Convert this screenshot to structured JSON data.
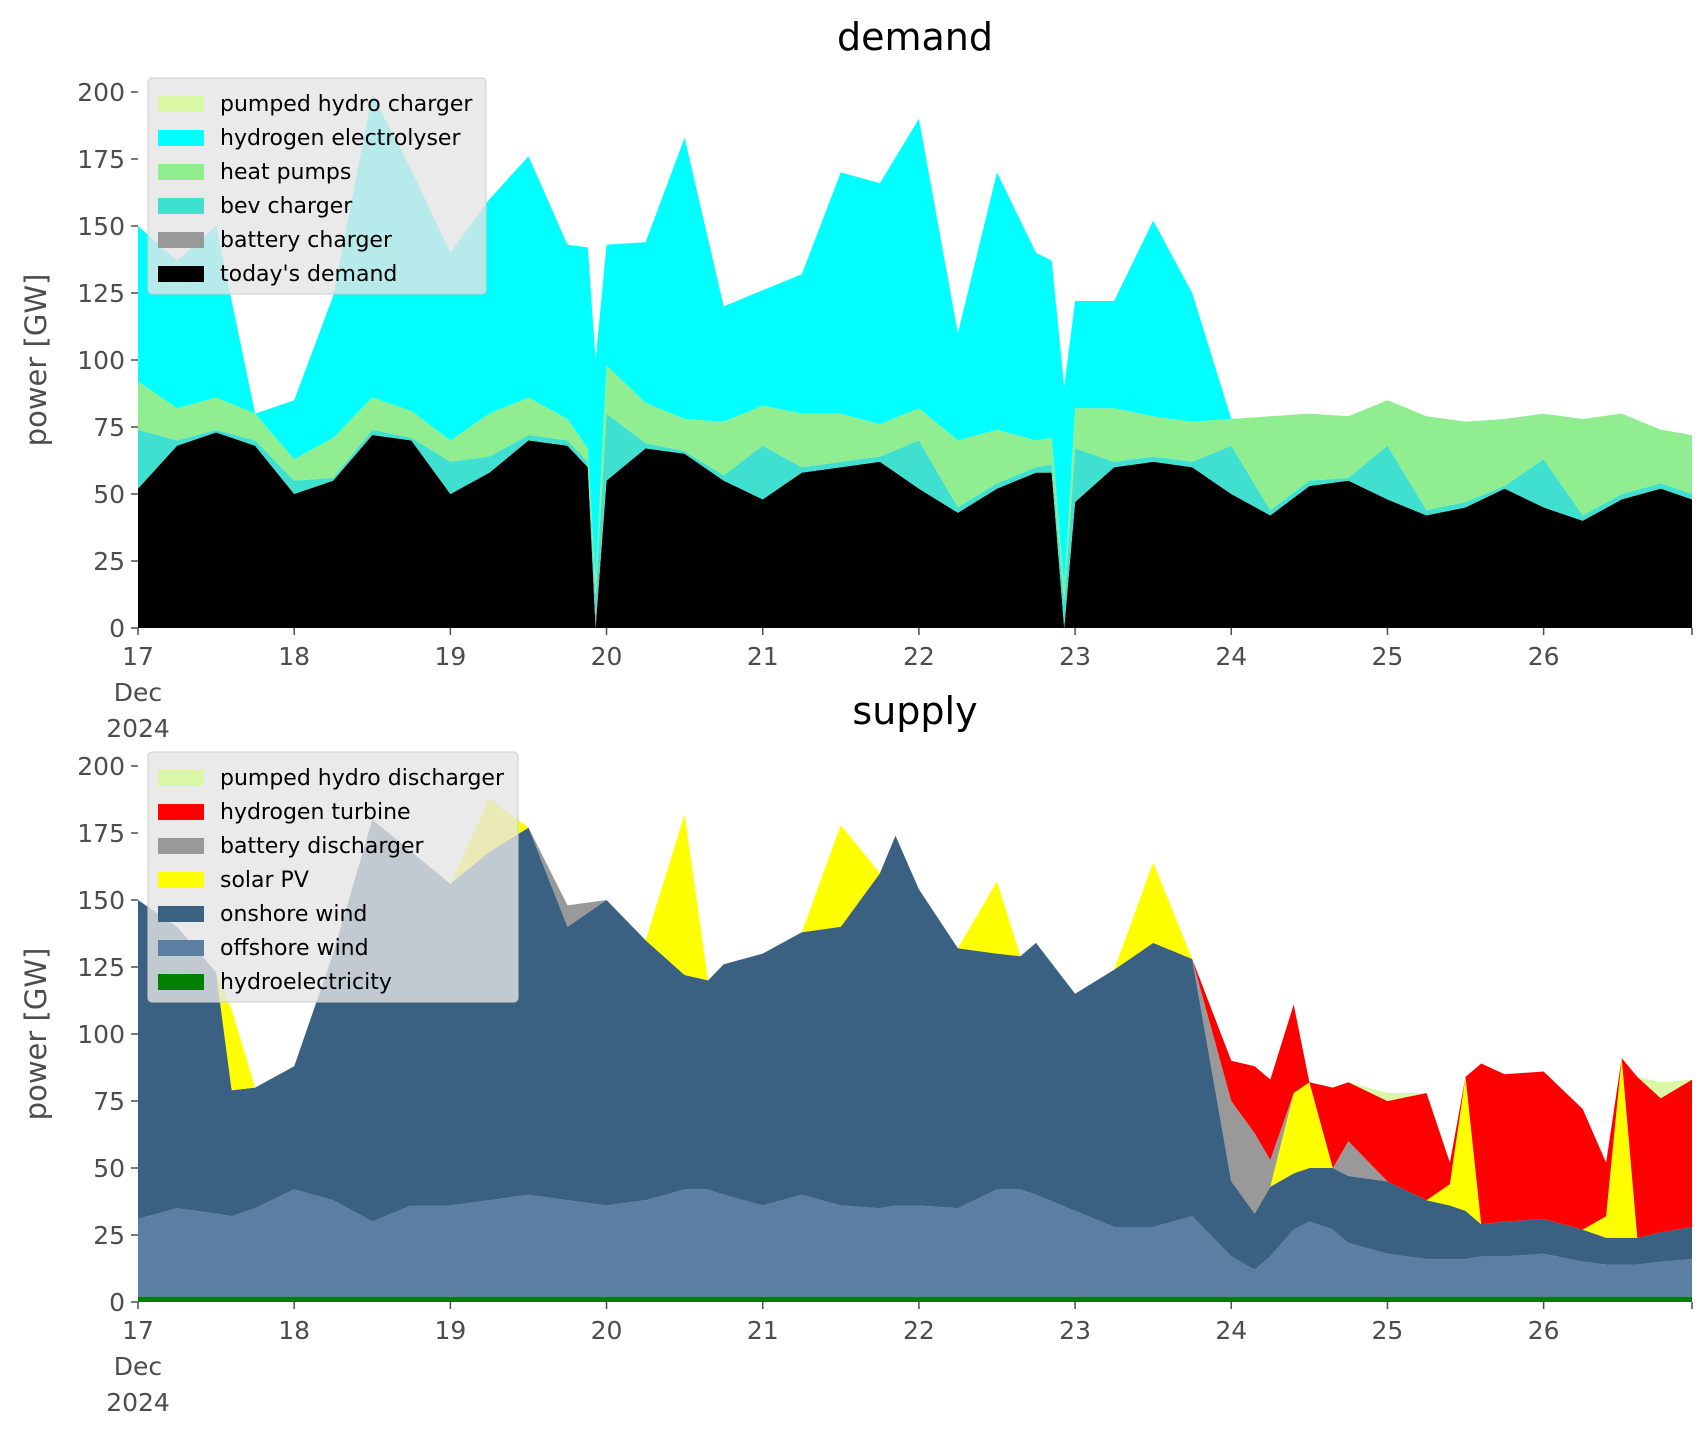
{
  "chart_data": [
    {
      "type": "area",
      "stacked": true,
      "title": "demand",
      "ylabel": "power [GW]",
      "xlabel": "",
      "ylim": [
        0,
        200
      ],
      "yticks": [
        0,
        25,
        50,
        75,
        100,
        125,
        150,
        175,
        200
      ],
      "xlim": [
        17,
        26.95
      ],
      "xticks": [
        {
          "x": 17,
          "label": "17",
          "sub1": "Dec",
          "sub2": "2024"
        },
        {
          "x": 18,
          "label": "18"
        },
        {
          "x": 19,
          "label": "19"
        },
        {
          "x": 20,
          "label": "20"
        },
        {
          "x": 21,
          "label": "21"
        },
        {
          "x": 22,
          "label": "22"
        },
        {
          "x": 23,
          "label": "23"
        },
        {
          "x": 24,
          "label": "24"
        },
        {
          "x": 25,
          "label": "25"
        },
        {
          "x": 26,
          "label": "26"
        }
      ],
      "grid": false,
      "legend_position": "top-left",
      "x": [
        17.0,
        17.25,
        17.5,
        17.75,
        18.0,
        18.25,
        18.5,
        18.75,
        19.0,
        19.25,
        19.5,
        19.75,
        19.88,
        19.93,
        20.0,
        20.25,
        20.5,
        20.75,
        21.0,
        21.25,
        21.5,
        21.75,
        22.0,
        22.25,
        22.5,
        22.75,
        22.85,
        22.93,
        23.0,
        23.25,
        23.5,
        23.75,
        24.0,
        24.25,
        24.5,
        24.75,
        25.0,
        25.25,
        25.5,
        25.75,
        26.0,
        26.25,
        26.5,
        26.75,
        26.95
      ],
      "series": [
        {
          "name": "today's demand",
          "color": "#000000",
          "values": [
            52,
            68,
            73,
            68,
            50,
            55,
            72,
            70,
            50,
            58,
            70,
            68,
            60,
            0,
            55,
            67,
            65,
            55,
            48,
            58,
            60,
            62,
            52,
            43,
            52,
            58,
            58,
            0,
            47,
            60,
            62,
            60,
            50,
            42,
            53,
            55,
            48,
            42,
            45,
            52,
            45,
            40,
            48,
            52,
            48
          ]
        },
        {
          "name": "battery charger",
          "color": "#999999",
          "values": [
            0,
            0,
            0,
            0,
            0,
            0,
            0,
            0,
            0,
            0,
            0,
            0,
            0,
            4,
            0,
            0,
            0,
            0,
            0,
            0,
            0,
            0,
            0,
            0,
            0,
            0,
            0,
            0,
            0,
            0,
            0,
            0,
            0,
            0,
            0,
            0,
            0,
            0,
            0,
            0,
            0,
            0,
            0,
            0,
            0
          ]
        },
        {
          "name": "bev charger",
          "color": "#40e0d0",
          "values": [
            22,
            2,
            1,
            2,
            5,
            1,
            2,
            1,
            12,
            6,
            2,
            2,
            2,
            8,
            25,
            2,
            1,
            2,
            20,
            2,
            2,
            2,
            18,
            2,
            2,
            2,
            3,
            10,
            20,
            2,
            2,
            2,
            18,
            2,
            2,
            1,
            20,
            2,
            2,
            1,
            18,
            2,
            2,
            2,
            2
          ]
        },
        {
          "name": "heat pumps",
          "color": "#90ee90",
          "values": [
            18,
            12,
            12,
            10,
            8,
            15,
            12,
            10,
            8,
            16,
            14,
            8,
            5,
            6,
            18,
            15,
            12,
            20,
            15,
            20,
            18,
            12,
            12,
            25,
            20,
            10,
            10,
            5,
            15,
            20,
            15,
            15,
            10,
            35,
            25,
            23,
            17,
            35,
            30,
            25,
            17,
            36,
            30,
            20,
            22
          ]
        },
        {
          "name": "hydrogen electrolyser",
          "color": "#00ffff",
          "values": [
            58,
            55,
            64,
            0,
            22,
            53,
            113,
            90,
            70,
            80,
            90,
            65,
            75,
            82,
            45,
            60,
            105,
            43,
            43,
            52,
            90,
            90,
            108,
            40,
            96,
            70,
            66,
            75,
            40,
            40,
            73,
            48,
            0,
            0,
            0,
            0,
            0,
            0,
            0,
            0,
            0,
            0,
            0,
            0,
            0
          ]
        },
        {
          "name": "pumped hydro charger",
          "color": "#daf7a6",
          "values": [
            0,
            0,
            0,
            0,
            0,
            0,
            0,
            0,
            0,
            0,
            0,
            0,
            0,
            0,
            0,
            0,
            0,
            0,
            0,
            0,
            0,
            0,
            0,
            0,
            0,
            0,
            0,
            0,
            0,
            0,
            0,
            0,
            0,
            0,
            0,
            0,
            0,
            0,
            0,
            0,
            0,
            0,
            0,
            0,
            0
          ]
        }
      ],
      "legend": [
        "pumped hydro charger",
        "hydrogen electrolyser",
        "heat pumps",
        "bev charger",
        "battery charger",
        "today's demand"
      ]
    },
    {
      "type": "area",
      "stacked": true,
      "title": "supply",
      "ylabel": "power [GW]",
      "xlabel": "",
      "ylim": [
        0,
        200
      ],
      "yticks": [
        0,
        25,
        50,
        75,
        100,
        125,
        150,
        175,
        200
      ],
      "xlim": [
        17,
        26.95
      ],
      "xticks": [
        {
          "x": 17,
          "label": "17",
          "sub1": "Dec",
          "sub2": "2024"
        },
        {
          "x": 18,
          "label": "18"
        },
        {
          "x": 19,
          "label": "19"
        },
        {
          "x": 20,
          "label": "20"
        },
        {
          "x": 21,
          "label": "21"
        },
        {
          "x": 22,
          "label": "22"
        },
        {
          "x": 23,
          "label": "23"
        },
        {
          "x": 24,
          "label": "24"
        },
        {
          "x": 25,
          "label": "25"
        },
        {
          "x": 26,
          "label": "26"
        }
      ],
      "grid": false,
      "legend_position": "top-left",
      "x": [
        17.0,
        17.25,
        17.5,
        17.6,
        17.75,
        18.0,
        18.25,
        18.5,
        18.75,
        19.0,
        19.25,
        19.5,
        19.75,
        20.0,
        20.25,
        20.5,
        20.65,
        20.75,
        21.0,
        21.25,
        21.5,
        21.75,
        21.85,
        22.0,
        22.25,
        22.5,
        22.65,
        22.75,
        23.0,
        23.25,
        23.5,
        23.75,
        24.0,
        24.15,
        24.25,
        24.4,
        24.5,
        24.65,
        24.75,
        25.0,
        25.25,
        25.4,
        25.5,
        25.6,
        25.75,
        26.0,
        26.25,
        26.4,
        26.5,
        26.6,
        26.75,
        26.95
      ],
      "series": [
        {
          "name": "hydroelectricity",
          "color": "#008000",
          "values": [
            2,
            2,
            2,
            2,
            2,
            2,
            2,
            2,
            2,
            2,
            2,
            2,
            2,
            2,
            2,
            2,
            2,
            2,
            2,
            2,
            2,
            2,
            2,
            2,
            2,
            2,
            2,
            2,
            2,
            2,
            2,
            2,
            2,
            2,
            2,
            2,
            2,
            2,
            2,
            2,
            2,
            2,
            2,
            2,
            2,
            2,
            2,
            2,
            2,
            2,
            2,
            2
          ]
        },
        {
          "name": "offshore wind",
          "color": "#5b7fa3",
          "values": [
            29,
            33,
            31,
            30,
            33,
            40,
            36,
            28,
            34,
            34,
            36,
            38,
            36,
            34,
            36,
            40,
            40,
            38,
            34,
            38,
            34,
            33,
            34,
            34,
            33,
            40,
            40,
            38,
            32,
            26,
            26,
            30,
            15,
            10,
            15,
            25,
            28,
            25,
            20,
            16,
            14,
            14,
            14,
            15,
            15,
            16,
            13,
            12,
            12,
            12,
            13,
            14
          ]
        },
        {
          "name": "onshore wind",
          "color": "#3b6182",
          "values": [
            119,
            105,
            90,
            47,
            45,
            46,
            92,
            150,
            132,
            120,
            130,
            137,
            102,
            114,
            97,
            80,
            78,
            86,
            94,
            98,
            104,
            125,
            138,
            118,
            97,
            88,
            87,
            94,
            81,
            96,
            106,
            96,
            28,
            21,
            26,
            21,
            20,
            23,
            25,
            27,
            22,
            20,
            18,
            12,
            13,
            13,
            12,
            10,
            10,
            10,
            11,
            12
          ]
        },
        {
          "name": "solar PV",
          "color": "#ffff00",
          "values": [
            0,
            0,
            0,
            30,
            0,
            0,
            0,
            0,
            0,
            0,
            20,
            0,
            0,
            0,
            0,
            60,
            0,
            0,
            0,
            0,
            38,
            0,
            0,
            0,
            0,
            27,
            0,
            0,
            0,
            0,
            30,
            0,
            0,
            0,
            0,
            30,
            32,
            0,
            0,
            0,
            0,
            8,
            50,
            0,
            0,
            0,
            0,
            8,
            67,
            0,
            0,
            0
          ]
        },
        {
          "name": "battery discharger",
          "color": "#999999",
          "values": [
            0,
            0,
            0,
            0,
            0,
            0,
            0,
            0,
            0,
            0,
            0,
            0,
            8,
            0,
            0,
            0,
            0,
            0,
            0,
            0,
            0,
            0,
            0,
            0,
            0,
            0,
            0,
            0,
            0,
            0,
            0,
            0,
            30,
            30,
            10,
            0,
            0,
            0,
            13,
            0,
            0,
            0,
            0,
            0,
            0,
            0,
            0,
            0,
            0,
            0,
            0,
            0
          ]
        },
        {
          "name": "hydrogen turbine",
          "color": "#ff0000",
          "values": [
            0,
            0,
            0,
            0,
            0,
            0,
            0,
            0,
            0,
            0,
            0,
            0,
            0,
            0,
            0,
            0,
            0,
            0,
            0,
            0,
            0,
            0,
            0,
            0,
            0,
            0,
            0,
            0,
            0,
            0,
            0,
            0,
            15,
            25,
            30,
            33,
            0,
            30,
            22,
            30,
            40,
            8,
            0,
            60,
            55,
            55,
            45,
            20,
            0,
            60,
            50,
            55
          ]
        },
        {
          "name": "pumped hydro discharger",
          "color": "#daf7a6",
          "values": [
            0,
            0,
            0,
            0,
            0,
            0,
            0,
            0,
            0,
            0,
            0,
            0,
            0,
            0,
            0,
            0,
            0,
            0,
            0,
            0,
            0,
            0,
            0,
            0,
            0,
            0,
            0,
            0,
            0,
            0,
            0,
            0,
            0,
            0,
            0,
            0,
            0,
            0,
            0,
            3,
            0,
            0,
            0,
            0,
            0,
            0,
            0,
            0,
            0,
            0,
            6,
            0
          ]
        }
      ],
      "legend": [
        "pumped hydro discharger",
        "hydrogen turbine",
        "battery discharger",
        "solar PV",
        "onshore wind",
        "offshore wind",
        "hydroelectricity"
      ]
    }
  ]
}
